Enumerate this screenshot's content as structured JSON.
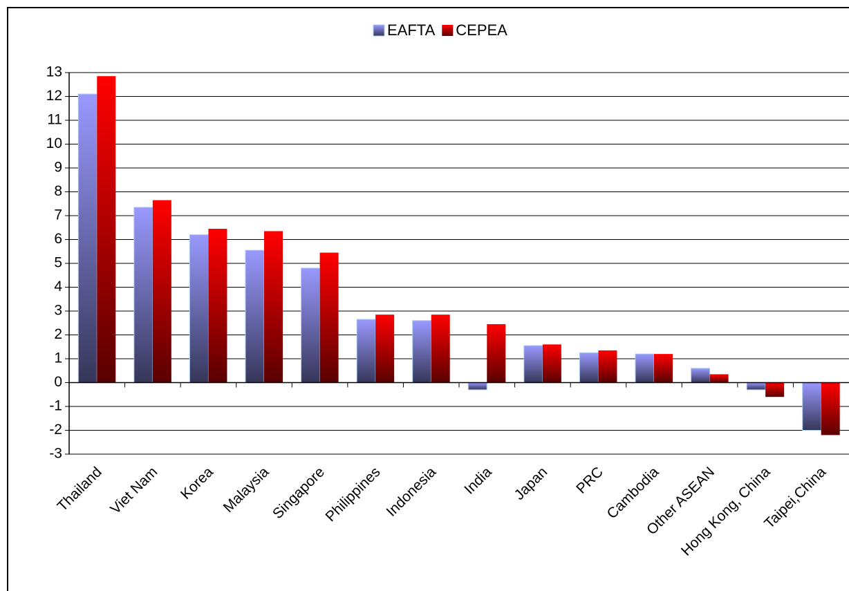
{
  "chart_data": {
    "type": "bar",
    "categories": [
      "Thailand",
      "Viet Nam",
      "Korea",
      "Malaysia",
      "Singapore",
      "Philippines",
      "Indonesia",
      "India",
      "Japan",
      "PRC",
      "Cambodia",
      "Other ASEAN",
      "Hong Kong, China",
      "Taipei,China"
    ],
    "series": [
      {
        "name": "EAFTA",
        "color": "#9999ff",
        "values": [
          12.1,
          7.35,
          6.2,
          5.55,
          4.8,
          2.65,
          2.6,
          -0.3,
          1.55,
          1.25,
          1.2,
          0.6,
          -0.3,
          -2.0
        ]
      },
      {
        "name": "CEPEA",
        "color": "#ff0000",
        "values": [
          12.85,
          7.65,
          6.45,
          6.35,
          5.45,
          2.85,
          2.85,
          2.45,
          1.6,
          1.35,
          1.2,
          0.35,
          -0.6,
          -2.2
        ]
      }
    ],
    "ylim": [
      -3,
      13
    ],
    "yticks": [
      -3,
      -2,
      -1,
      0,
      1,
      2,
      3,
      4,
      5,
      6,
      7,
      8,
      9,
      10,
      11,
      12,
      13
    ],
    "grid": true,
    "legend": "top"
  }
}
